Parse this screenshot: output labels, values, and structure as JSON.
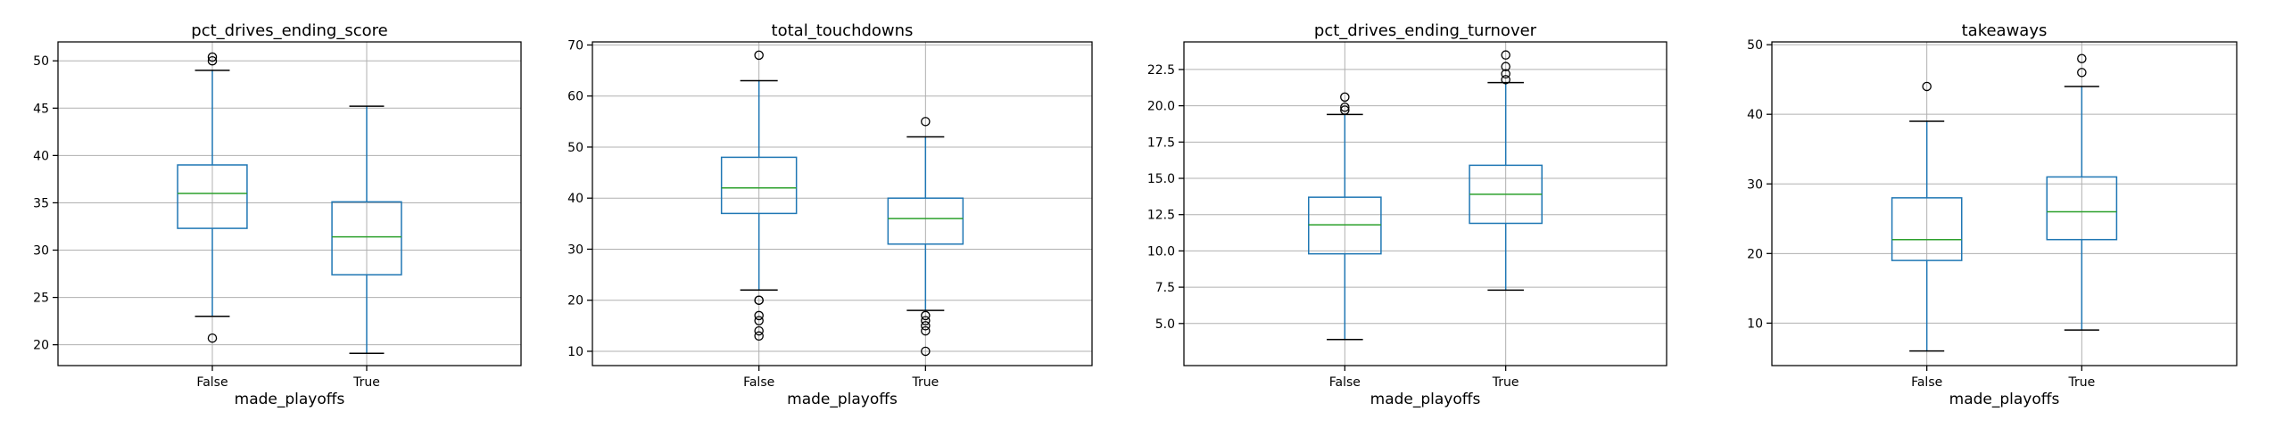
{
  "chart_data": [
    {
      "type": "boxplot",
      "title": "pct_drives_ending_score",
      "xlabel": "made_playoffs",
      "ylabel": "",
      "ylim": [
        17.8,
        52.0
      ],
      "yticks": [
        20,
        25,
        30,
        35,
        40,
        45,
        50
      ],
      "grid": true,
      "categories": [
        "False",
        "True"
      ],
      "boxes": [
        {
          "whislo": 23.0,
          "q1": 32.3,
          "med": 36.0,
          "q3": 39.0,
          "whishi": 49.0,
          "fliers": [
            20.7,
            50.0,
            50.4
          ]
        },
        {
          "whislo": 19.1,
          "q1": 27.4,
          "med": 31.4,
          "q3": 35.1,
          "whishi": 45.2,
          "fliers": []
        }
      ]
    },
    {
      "type": "boxplot",
      "title": "total_touchdowns",
      "xlabel": "made_playoffs",
      "ylabel": "",
      "ylim": [
        7.2,
        70.6
      ],
      "yticks": [
        10,
        20,
        30,
        40,
        50,
        60,
        70
      ],
      "grid": true,
      "categories": [
        "False",
        "True"
      ],
      "boxes": [
        {
          "whislo": 22,
          "q1": 37,
          "med": 42,
          "q3": 48,
          "whishi": 63,
          "fliers": [
            68,
            20,
            20,
            17,
            16,
            14,
            13
          ]
        },
        {
          "whislo": 18,
          "q1": 31,
          "med": 36,
          "q3": 40,
          "whishi": 52,
          "fliers": [
            55,
            17,
            16,
            15,
            14,
            10
          ]
        }
      ]
    },
    {
      "type": "boxplot",
      "title": "pct_drives_ending_turnover",
      "xlabel": "made_playoffs",
      "ylabel": "",
      "ylim": [
        2.1,
        24.4
      ],
      "yticks": [
        5.0,
        7.5,
        10.0,
        12.5,
        15.0,
        17.5,
        20.0,
        22.5
      ],
      "yticklabels": [
        "5.0",
        "7.5",
        "10.0",
        "12.5",
        "15.0",
        "17.5",
        "20.0",
        "22.5"
      ],
      "grid": true,
      "categories": [
        "False",
        "True"
      ],
      "boxes": [
        {
          "whislo": 3.9,
          "q1": 9.8,
          "med": 11.8,
          "q3": 13.7,
          "whishi": 19.4,
          "fliers": [
            20.6,
            19.9,
            19.7
          ]
        },
        {
          "whislo": 7.3,
          "q1": 11.9,
          "med": 13.9,
          "q3": 15.9,
          "whishi": 21.6,
          "fliers": [
            23.5,
            22.7,
            22.2,
            21.8
          ]
        }
      ]
    },
    {
      "type": "boxplot",
      "title": "takeaways",
      "xlabel": "made_playoffs",
      "ylabel": "",
      "ylim": [
        3.9,
        50.4
      ],
      "yticks": [
        10,
        20,
        30,
        40,
        50
      ],
      "grid": true,
      "categories": [
        "False",
        "True"
      ],
      "boxes": [
        {
          "whislo": 6,
          "q1": 19,
          "med": 22,
          "q3": 28,
          "whishi": 39,
          "fliers": [
            44
          ]
        },
        {
          "whislo": 9,
          "q1": 22,
          "med": 26,
          "q3": 31,
          "whishi": 44,
          "fliers": [
            48,
            46
          ]
        }
      ]
    }
  ],
  "colors": {
    "box": "#1f77b4",
    "median": "#2ca02c",
    "cap": "#000000",
    "grid": "#b0b0b0",
    "frame": "#000000"
  }
}
